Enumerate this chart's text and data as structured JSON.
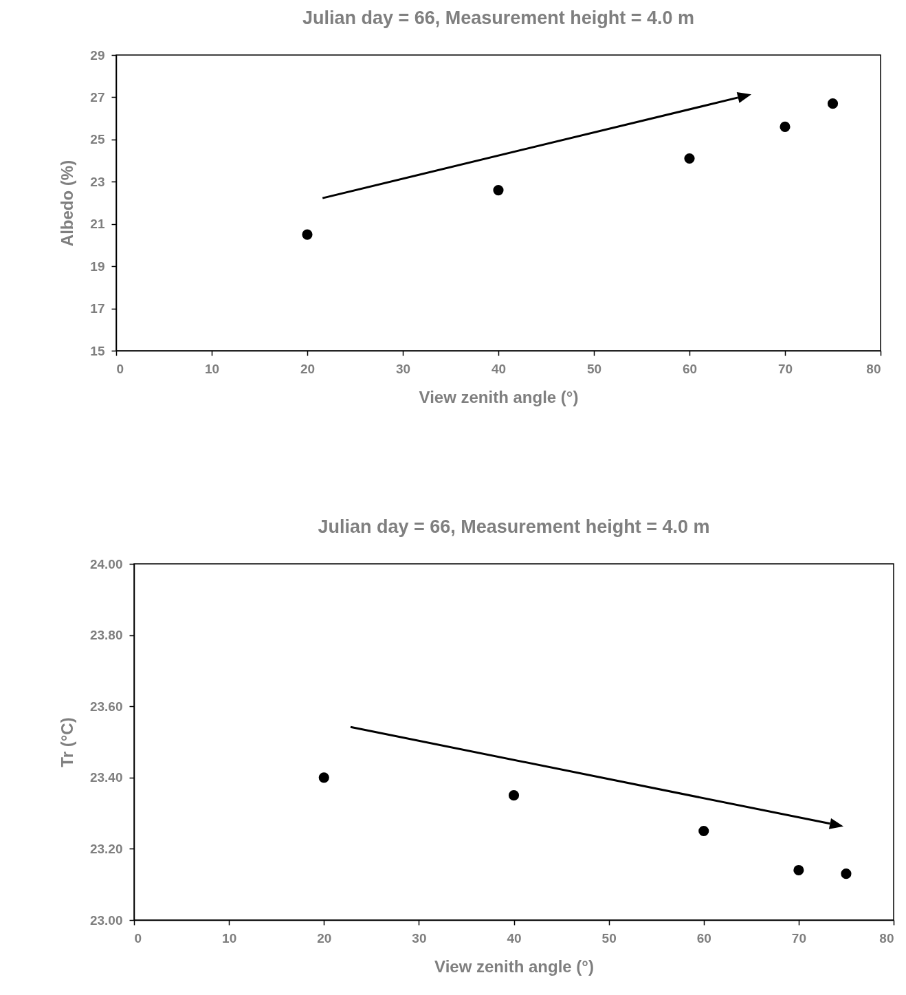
{
  "chart_data": [
    {
      "type": "scatter",
      "title": "Julian day = 66, Measurement height = 4.0 m",
      "xlabel": "View zenith angle (°)",
      "ylabel": "Albedo (%)",
      "x": [
        20,
        40,
        60,
        70,
        75
      ],
      "values": [
        20.5,
        22.6,
        24.1,
        25.6,
        26.7
      ],
      "color": "#000000",
      "marker": "circle",
      "xlim": [
        0,
        80
      ],
      "xticks": [
        0,
        10,
        20,
        30,
        40,
        50,
        60,
        70,
        80
      ],
      "ylim": [
        15,
        29
      ],
      "yticks": [
        15,
        17,
        19,
        21,
        23,
        25,
        27,
        29
      ]
    },
    {
      "type": "scatter",
      "title": "Julian day = 66, Measurement height = 4.0 m",
      "xlabel": "View zenith angle (°)",
      "ylabel": "Tr (°C)",
      "x": [
        20,
        40,
        60,
        70,
        75
      ],
      "values": [
        23.4,
        23.35,
        23.25,
        23.14,
        23.13
      ],
      "color": "#000000",
      "marker": "circle",
      "xlim": [
        0,
        80
      ],
      "xticks": [
        0,
        10,
        20,
        30,
        40,
        50,
        60,
        70,
        80
      ],
      "ylim": [
        23,
        24
      ],
      "yticks": [
        {
          "value": 23,
          "label": "23.00"
        },
        {
          "value": 23.2,
          "label": "23.20"
        },
        {
          "value": 23.4,
          "label": "23.40"
        },
        {
          "value": 23.6,
          "label": "23.60"
        },
        {
          "value": 23.8,
          "label": "23.80"
        },
        {
          "value": 24,
          "label": "24.00"
        }
      ]
    }
  ]
}
